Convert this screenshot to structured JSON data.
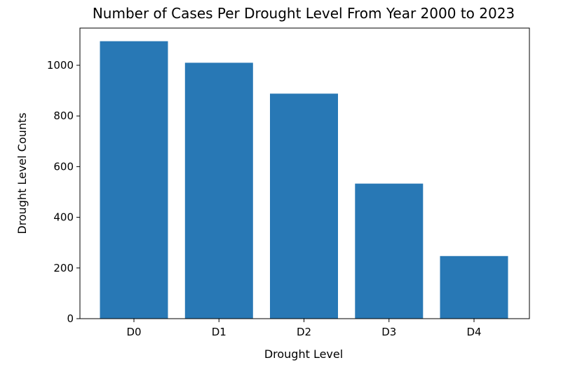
{
  "chart_data": {
    "type": "bar",
    "title": "Number of Cases Per Drought Level From Year 2000 to 2023",
    "xlabel": "Drought Level",
    "ylabel": "Drought Level Counts",
    "categories": [
      "D0",
      "D1",
      "D2",
      "D3",
      "D4"
    ],
    "values": [
      1095,
      1010,
      888,
      533,
      247
    ],
    "ylim": [
      0,
      1100
    ],
    "yticks": [
      0,
      200,
      400,
      600,
      800,
      1000
    ],
    "bar_color": "#2878b5",
    "grid": false,
    "legend": "none"
  }
}
